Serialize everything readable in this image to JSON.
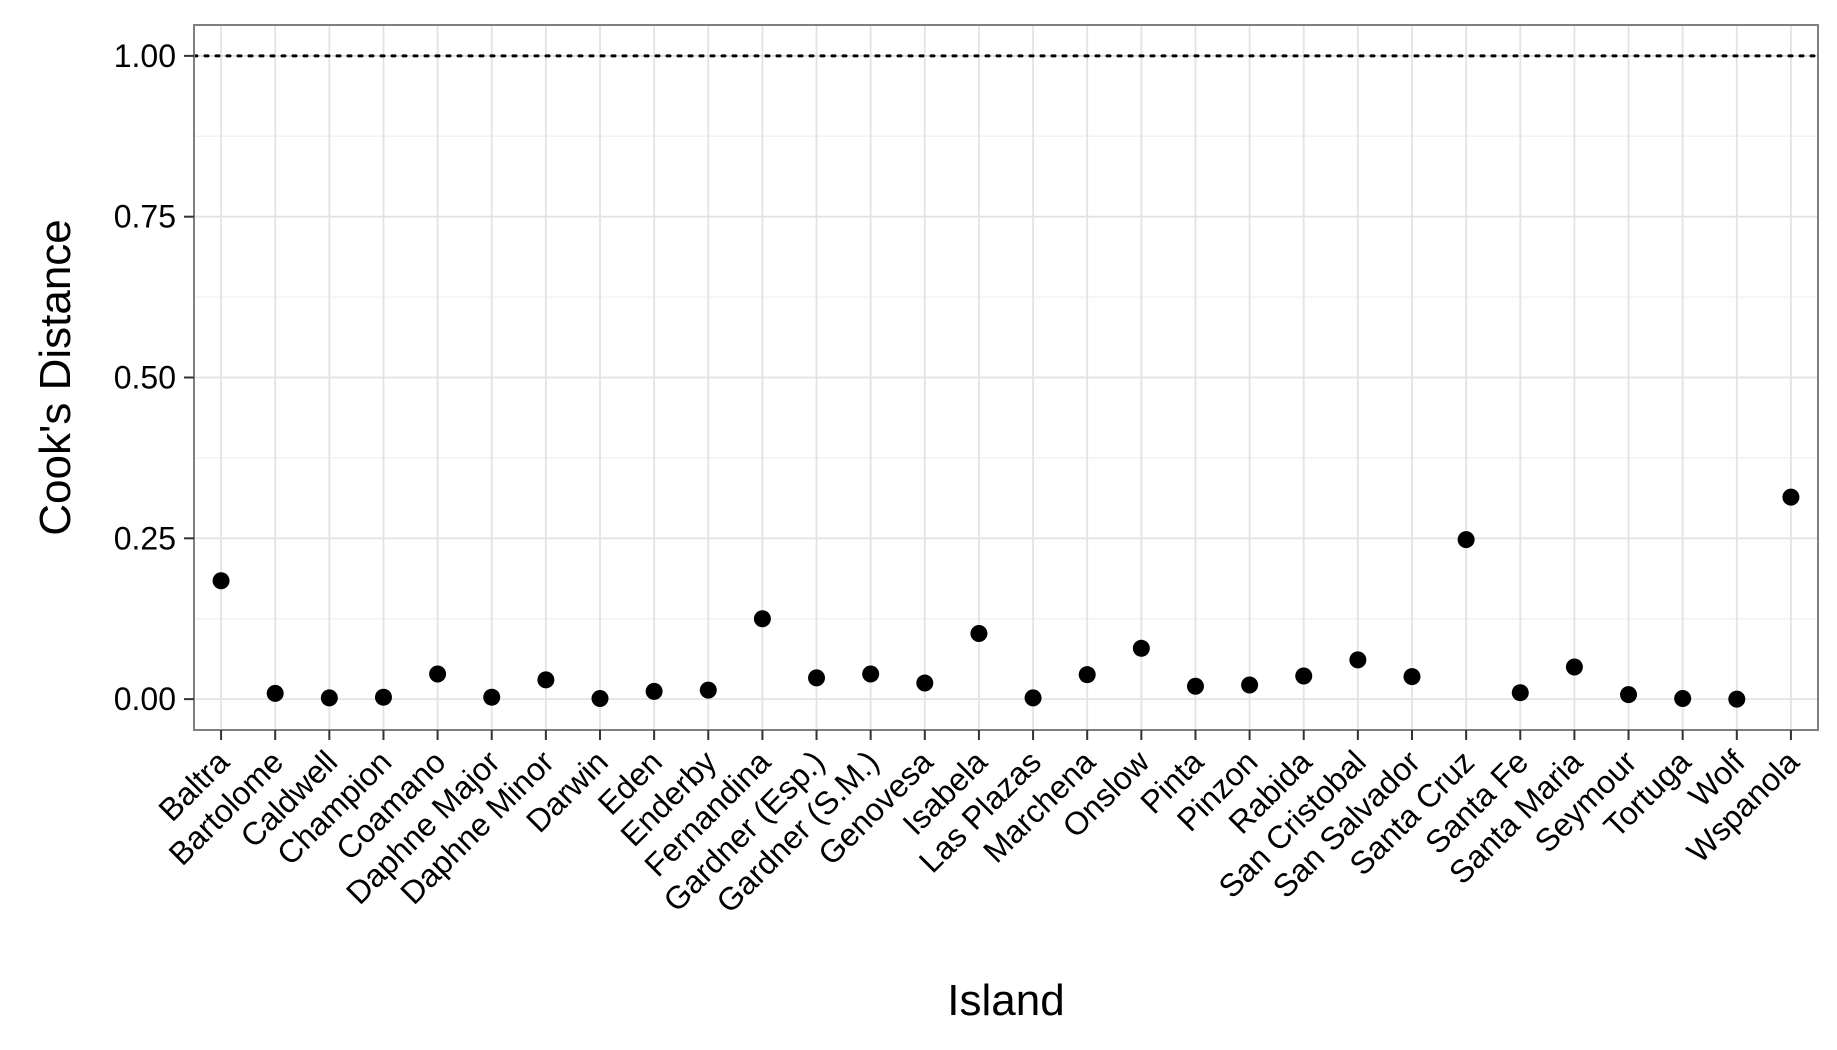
{
  "chart_data": {
    "type": "scatter",
    "xlabel": "Island",
    "ylabel": "Cook's Distance",
    "categories": [
      "Baltra",
      "Bartolome",
      "Caldwell",
      "Champion",
      "Coamano",
      "Daphne Major",
      "Daphne Minor",
      "Darwin",
      "Eden",
      "Enderby",
      "Fernandina",
      "Gardner (Esp.)",
      "Gardner (S.M.)",
      "Genovesa",
      "Isabela",
      "Las Plazas",
      "Marchena",
      "Onslow",
      "Pinta",
      "Pinzon",
      "Rabida",
      "San Cristobal",
      "San Salvador",
      "Santa Cruz",
      "Santa Fe",
      "Santa Maria",
      "Seymour",
      "Tortuga",
      "Wolf",
      "Wspanola"
    ],
    "values": [
      0.184,
      0.009,
      0.002,
      0.003,
      0.039,
      0.003,
      0.03,
      0.001,
      0.012,
      0.014,
      0.125,
      0.033,
      0.039,
      0.025,
      0.102,
      0.002,
      0.038,
      0.079,
      0.02,
      0.022,
      0.036,
      0.061,
      0.035,
      0.248,
      0.01,
      0.05,
      0.007,
      0.001,
      0.0,
      0.314
    ],
    "ylim": [
      -0.048,
      1.048
    ],
    "yticks": [
      0.0,
      0.25,
      0.5,
      0.75,
      1.0
    ],
    "ytick_labels": [
      "0.00",
      "0.25",
      "0.50",
      "0.75",
      "1.00"
    ],
    "reference_line": {
      "y": 1.0,
      "style": "dotted",
      "color": "#000000"
    },
    "grid": true,
    "point_color": "#000000",
    "panel_border_color": "#7f7f7f",
    "grid_major_color": "#e3e3e3",
    "grid_minor_color": "#f2f2f2"
  }
}
